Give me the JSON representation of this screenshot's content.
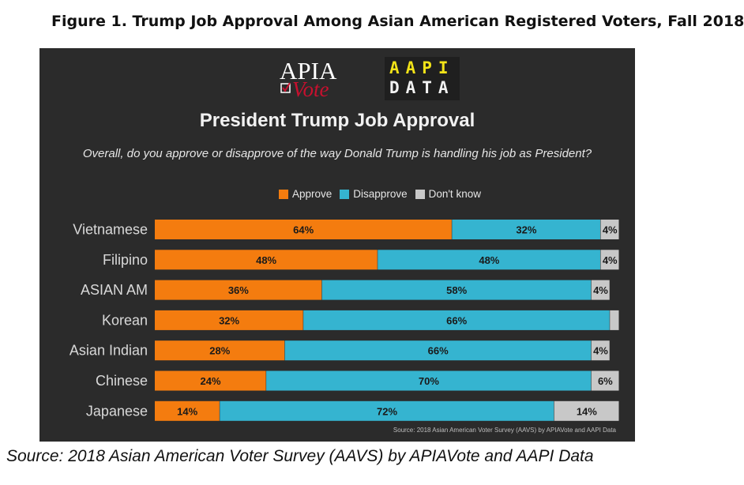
{
  "caption": "Figure 1.  Trump Job Approval Among Asian American Registered Voters, Fall 2018",
  "logos": {
    "apia_top": "APIA",
    "apia_script": "Vote",
    "aapi_line1": "AAPI",
    "aapi_line2": "DATA"
  },
  "chart_data": {
    "type": "bar",
    "orientation": "horizontal",
    "stacked": true,
    "title": "President Trump Job Approval",
    "subtitle": "Overall, do you approve or disapprove of the way Donald Trump is handling his job as President?",
    "categories": [
      "Vietnamese",
      "Filipino",
      "ASIAN AM",
      "Korean",
      "Asian Indian",
      "Chinese",
      "Japanese"
    ],
    "series": [
      {
        "name": "Approve",
        "color": "#f47c0f",
        "values": [
          64,
          48,
          36,
          32,
          28,
          24,
          14
        ],
        "labels": [
          "64%",
          "48%",
          "36%",
          "32%",
          "28%",
          "24%",
          "14%"
        ]
      },
      {
        "name": "Disapprove",
        "color": "#35b4d0",
        "values": [
          32,
          48,
          58,
          66,
          66,
          70,
          72
        ],
        "labels": [
          "32%",
          "48%",
          "58%",
          "66%",
          "66%",
          "70%",
          "72%"
        ]
      },
      {
        "name": "Don't know",
        "color": "#c8c8c8",
        "values": [
          4,
          4,
          4,
          2,
          4,
          6,
          14
        ],
        "labels": [
          "4%",
          "4%",
          "4%",
          "",
          "4%",
          "6%",
          "14%"
        ]
      }
    ],
    "xlim": [
      0,
      100
    ],
    "legend": "top-center",
    "grid": false,
    "source": "Source: 2018 Asian American Voter Survey (AAVS) by APIAVote and AAPI Data"
  },
  "page_source": "Source: 2018 Asian American Voter Survey (AAVS) by APIAVote and AAPI Data"
}
